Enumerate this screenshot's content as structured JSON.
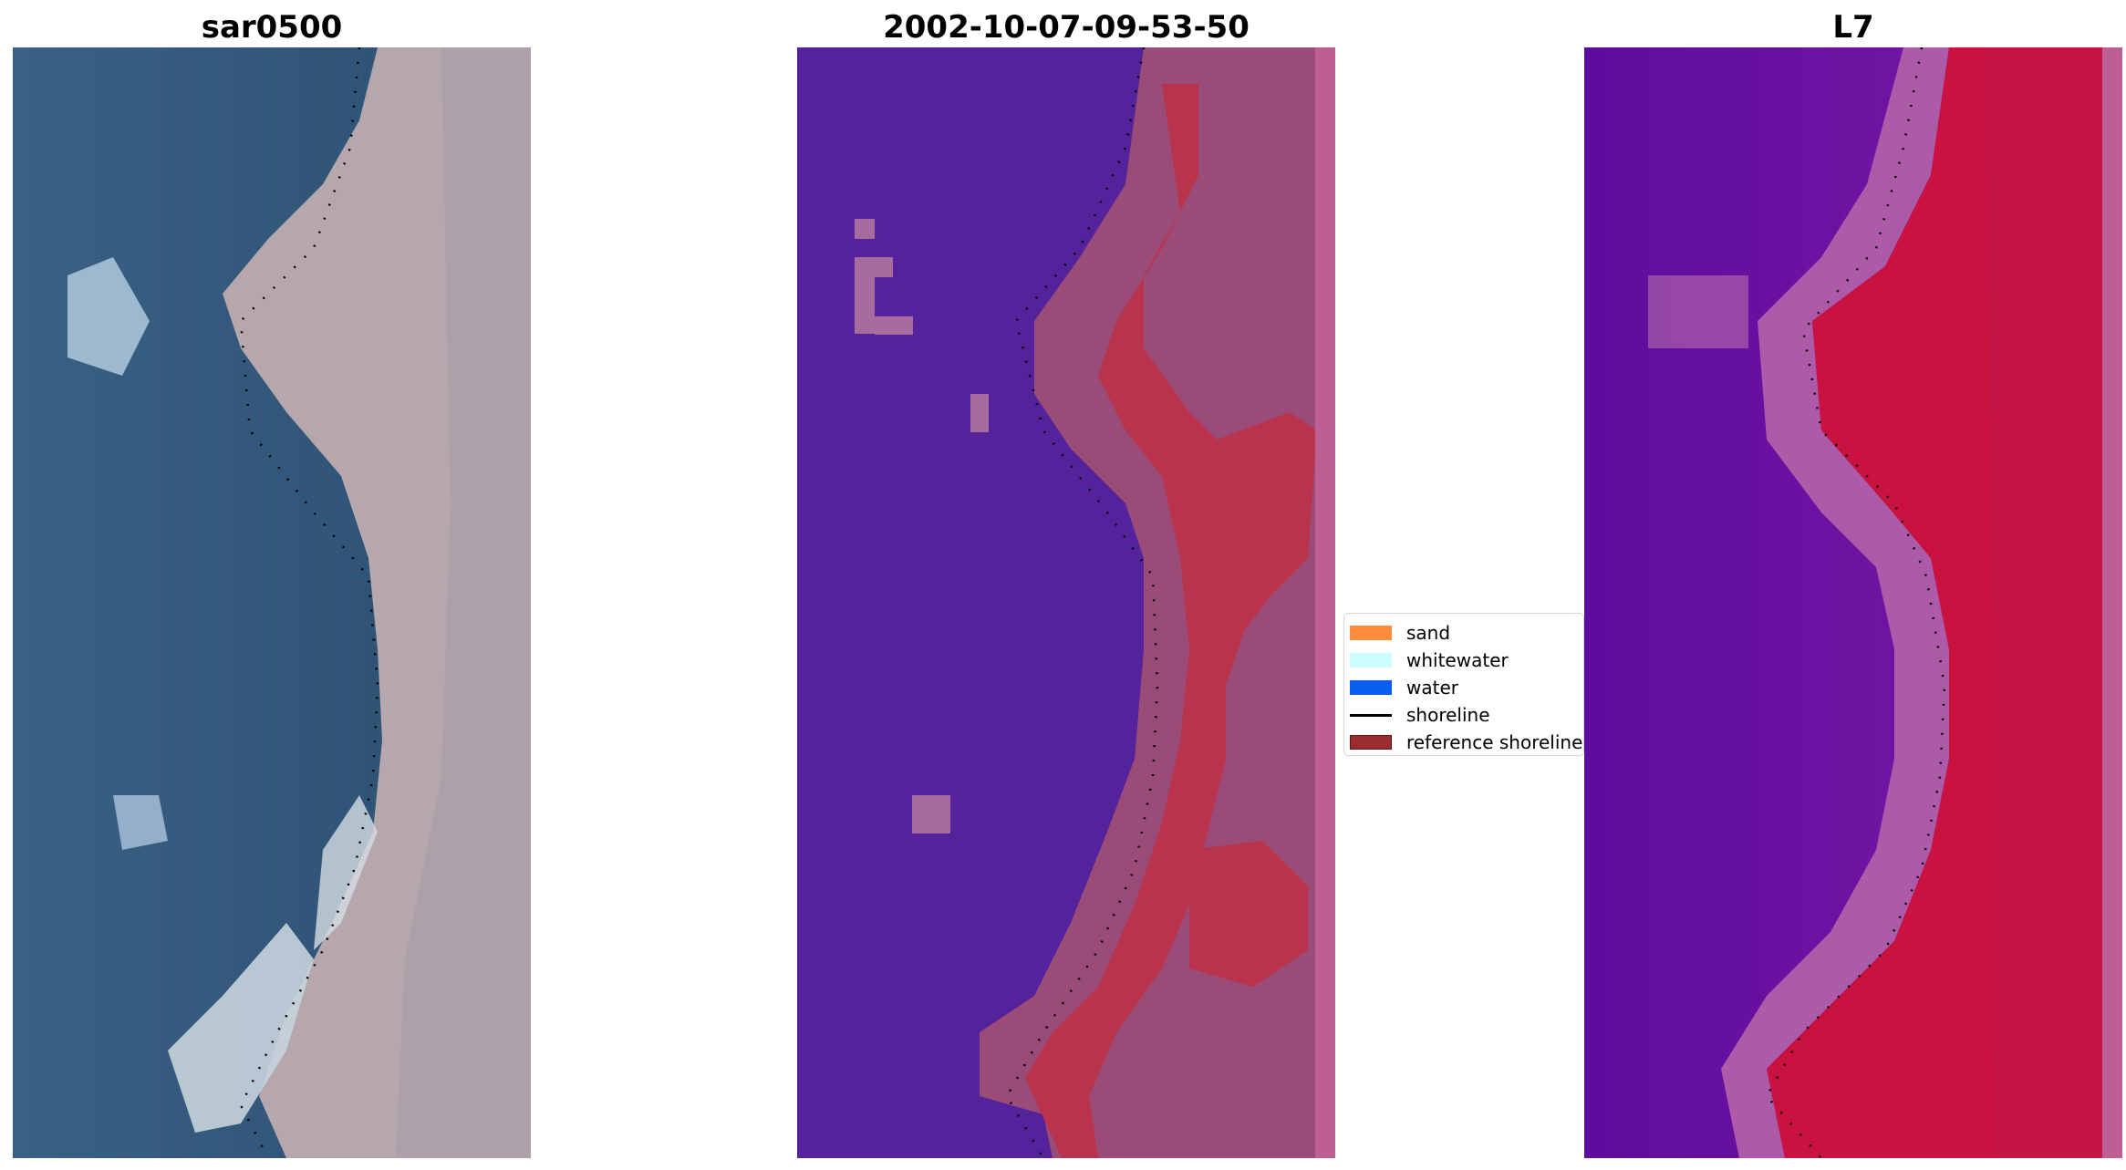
{
  "panels": [
    {
      "title": "sar0500",
      "kind": "rgb"
    },
    {
      "title": "2002-10-07-09-53-50",
      "kind": "classified"
    },
    {
      "title": "L7",
      "kind": "index"
    }
  ],
  "legend": {
    "items": [
      {
        "label": "sand",
        "color": "#ff8c3a",
        "type": "patch"
      },
      {
        "label": "whitewater",
        "color": "#ccffff",
        "type": "patch"
      },
      {
        "label": "water",
        "color": "#0a5ef0",
        "type": "patch"
      },
      {
        "label": "shoreline",
        "color": "#000000",
        "type": "line"
      },
      {
        "label": "reference shoreline",
        "color": "#9b2d30",
        "type": "patch"
      }
    ]
  },
  "colors": {
    "water_rgb": "#2f5577",
    "land_rgb": "#b7aaad",
    "class_water": "#54229a",
    "class_sand": "#b9334c",
    "class_land": "#9a4b78",
    "index_low": "#6a129f",
    "index_high": "#c9123f",
    "shoreline": "#000000"
  }
}
